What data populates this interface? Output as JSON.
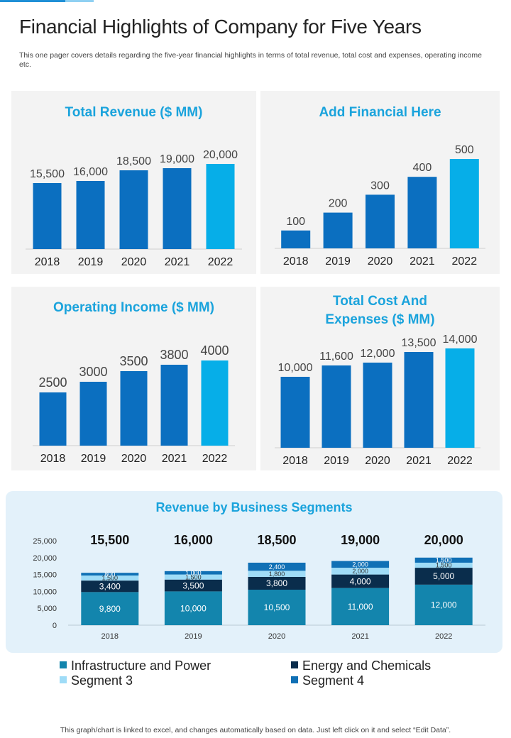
{
  "page": {
    "title": "Financial Highlights of Company for Five Years",
    "subtitle": "This one pager covers details regarding the five-year financial highlights in terms of total revenue, total cost and expenses, operating income etc.",
    "footer": "This graph/chart is linked to excel, and changes automatically based on data. Just left click on it and select “Edit Data”."
  },
  "colors": {
    "bar": "#0b6fc0",
    "highlight": "#06aee8",
    "title": "#1aa3dc"
  },
  "chart_data": [
    {
      "id": "revenue",
      "type": "bar",
      "title": "Total Revenue ($ MM)",
      "categories": [
        "2018",
        "2019",
        "2020",
        "2021",
        "2022"
      ],
      "values": [
        15500,
        16000,
        18500,
        19000,
        20000
      ],
      "labels": [
        "15,500",
        "16,000",
        "18,500",
        "19,000",
        "20,000"
      ],
      "ylim": [
        0,
        20000
      ]
    },
    {
      "id": "financial",
      "type": "bar",
      "title": "Add Financial Here",
      "categories": [
        "2018",
        "2019",
        "2020",
        "2021",
        "2022"
      ],
      "values": [
        100,
        200,
        300,
        400,
        500
      ],
      "labels": [
        "100",
        "200",
        "300",
        "400",
        "500"
      ],
      "ylim": [
        0,
        500
      ]
    },
    {
      "id": "operating",
      "type": "bar",
      "title": "Operating Income ($ MM)",
      "categories": [
        "2018",
        "2019",
        "2020",
        "2021",
        "2022"
      ],
      "values": [
        2500,
        3000,
        3500,
        3800,
        4000
      ],
      "labels": [
        "2500",
        "3000",
        "3500",
        "3800",
        "4000"
      ],
      "ylim": [
        0,
        4000
      ]
    },
    {
      "id": "cost",
      "type": "bar",
      "title": "Total Cost And Expenses ($ MM)",
      "categories": [
        "2018",
        "2019",
        "2020",
        "2021",
        "2022"
      ],
      "values": [
        10000,
        11600,
        12000,
        13500,
        14000
      ],
      "labels": [
        "10,000",
        "11,600",
        "12,000",
        "13,500",
        "14,000"
      ],
      "ylim": [
        0,
        14000
      ]
    },
    {
      "id": "segments",
      "type": "bar",
      "stacked": true,
      "title": "Revenue by Business Segments",
      "categories": [
        "2018",
        "2019",
        "2020",
        "2021",
        "2022"
      ],
      "totals": [
        "15,500",
        "16,000",
        "18,500",
        "19,000",
        "20,000"
      ],
      "yticks": [
        "0",
        "5,000",
        "10,000",
        "15,000",
        "20,000",
        "25,000"
      ],
      "ylim": [
        0,
        25000
      ],
      "series": [
        {
          "name": "Infrastructure and Power",
          "color": "#1385ad",
          "values": [
            9800,
            10000,
            10500,
            11000,
            12000
          ],
          "labels": [
            "9,800",
            "10,000",
            "10,500",
            "11,000",
            "12,000"
          ]
        },
        {
          "name": "Energy and Chemicals",
          "color": "#0a2d4c",
          "values": [
            3400,
            3500,
            3800,
            4000,
            5000
          ],
          "labels": [
            "3,400",
            "3,500",
            "3,800",
            "4,000",
            "5,000"
          ]
        },
        {
          "name": "Segment 3",
          "color": "#9fdcf7",
          "values": [
            1500,
            1500,
            1800,
            2000,
            1500
          ],
          "labels": [
            "1,500",
            "1,500",
            "1,800",
            "2,000",
            "1,500"
          ]
        },
        {
          "name": "Segment 4",
          "color": "#1070b5",
          "values": [
            800,
            1000,
            2400,
            2000,
            1500
          ],
          "labels": [
            "800",
            "1,000",
            "2,400",
            "2,000",
            "1,500"
          ]
        }
      ]
    }
  ]
}
